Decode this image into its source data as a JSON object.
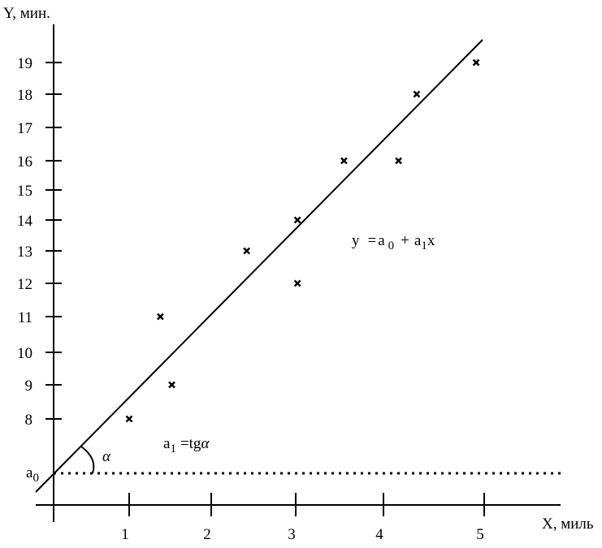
{
  "chart_data": {
    "type": "scatter",
    "ylabel": "Y, мин.",
    "xlabel": "X, миль",
    "x_ticks": [
      "1",
      "2",
      "3",
      "4",
      "5"
    ],
    "y_ticks": [
      "8",
      "9",
      "10",
      "11",
      "12",
      "13",
      "14",
      "15",
      "16",
      "17",
      "18",
      "19"
    ],
    "intercept_label": {
      "base": "a",
      "sub": "0"
    },
    "regression": {
      "intercept": 6.65,
      "slope": 2.65
    },
    "points": [
      {
        "x": 1.0,
        "y": 8
      },
      {
        "x": 1.38,
        "y": 11
      },
      {
        "x": 1.52,
        "y": 9
      },
      {
        "x": 2.42,
        "y": 13
      },
      {
        "x": 3.02,
        "y": 14
      },
      {
        "x": 3.02,
        "y": 12
      },
      {
        "x": 3.55,
        "y": 16
      },
      {
        "x": 4.15,
        "y": 16
      },
      {
        "x": 4.33,
        "y": 18
      },
      {
        "x": 4.92,
        "y": 19
      }
    ],
    "equation": {
      "lhs": "y",
      "eq": "=",
      "a": "a",
      "sub0": "0",
      "plus": "+",
      "sub1": "1",
      "var": "x"
    },
    "slope_label": {
      "a": "a",
      "sub": "1",
      "rhs": "=tg",
      "alpha": "α"
    },
    "angle_symbol": "α"
  }
}
